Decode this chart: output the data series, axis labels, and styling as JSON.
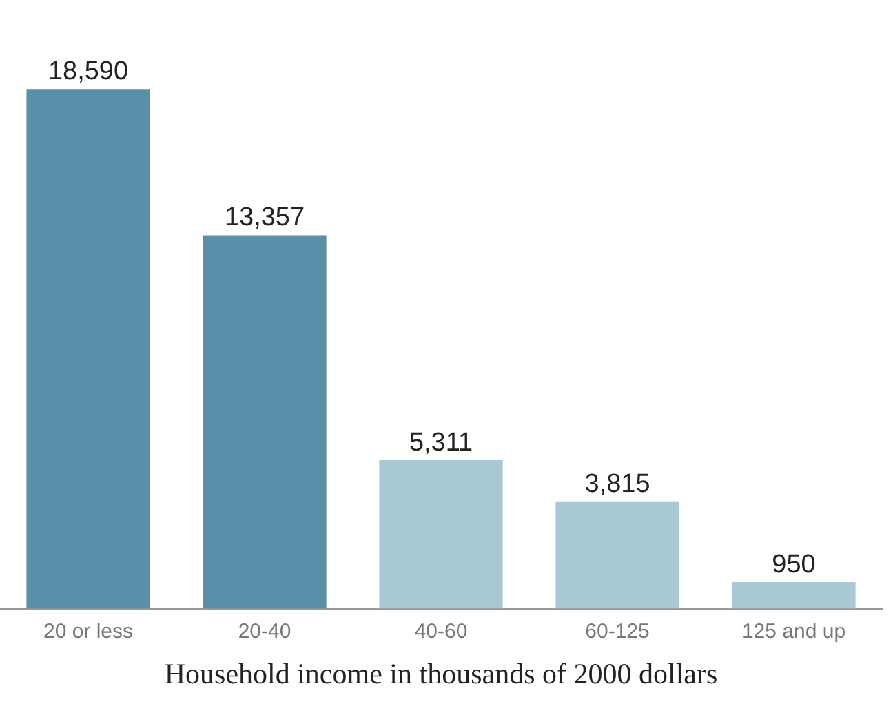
{
  "chart_data": {
    "type": "bar",
    "xlabel": "Household income in thousands of 2000 dollars",
    "categories": [
      "20 or less",
      "20-40",
      "40-60",
      "60-125",
      "125 and up"
    ],
    "values": [
      18590,
      13357,
      5311,
      3815,
      950
    ],
    "colors": [
      "#5a8fa9",
      "#5a8fa9",
      "#a8c8d5",
      "#a8c8d5",
      "#a8c8d5"
    ],
    "value_labels": [
      "18,590",
      "13,357",
      "5,311",
      "3,815",
      "950"
    ],
    "grid": false,
    "legend": false
  }
}
